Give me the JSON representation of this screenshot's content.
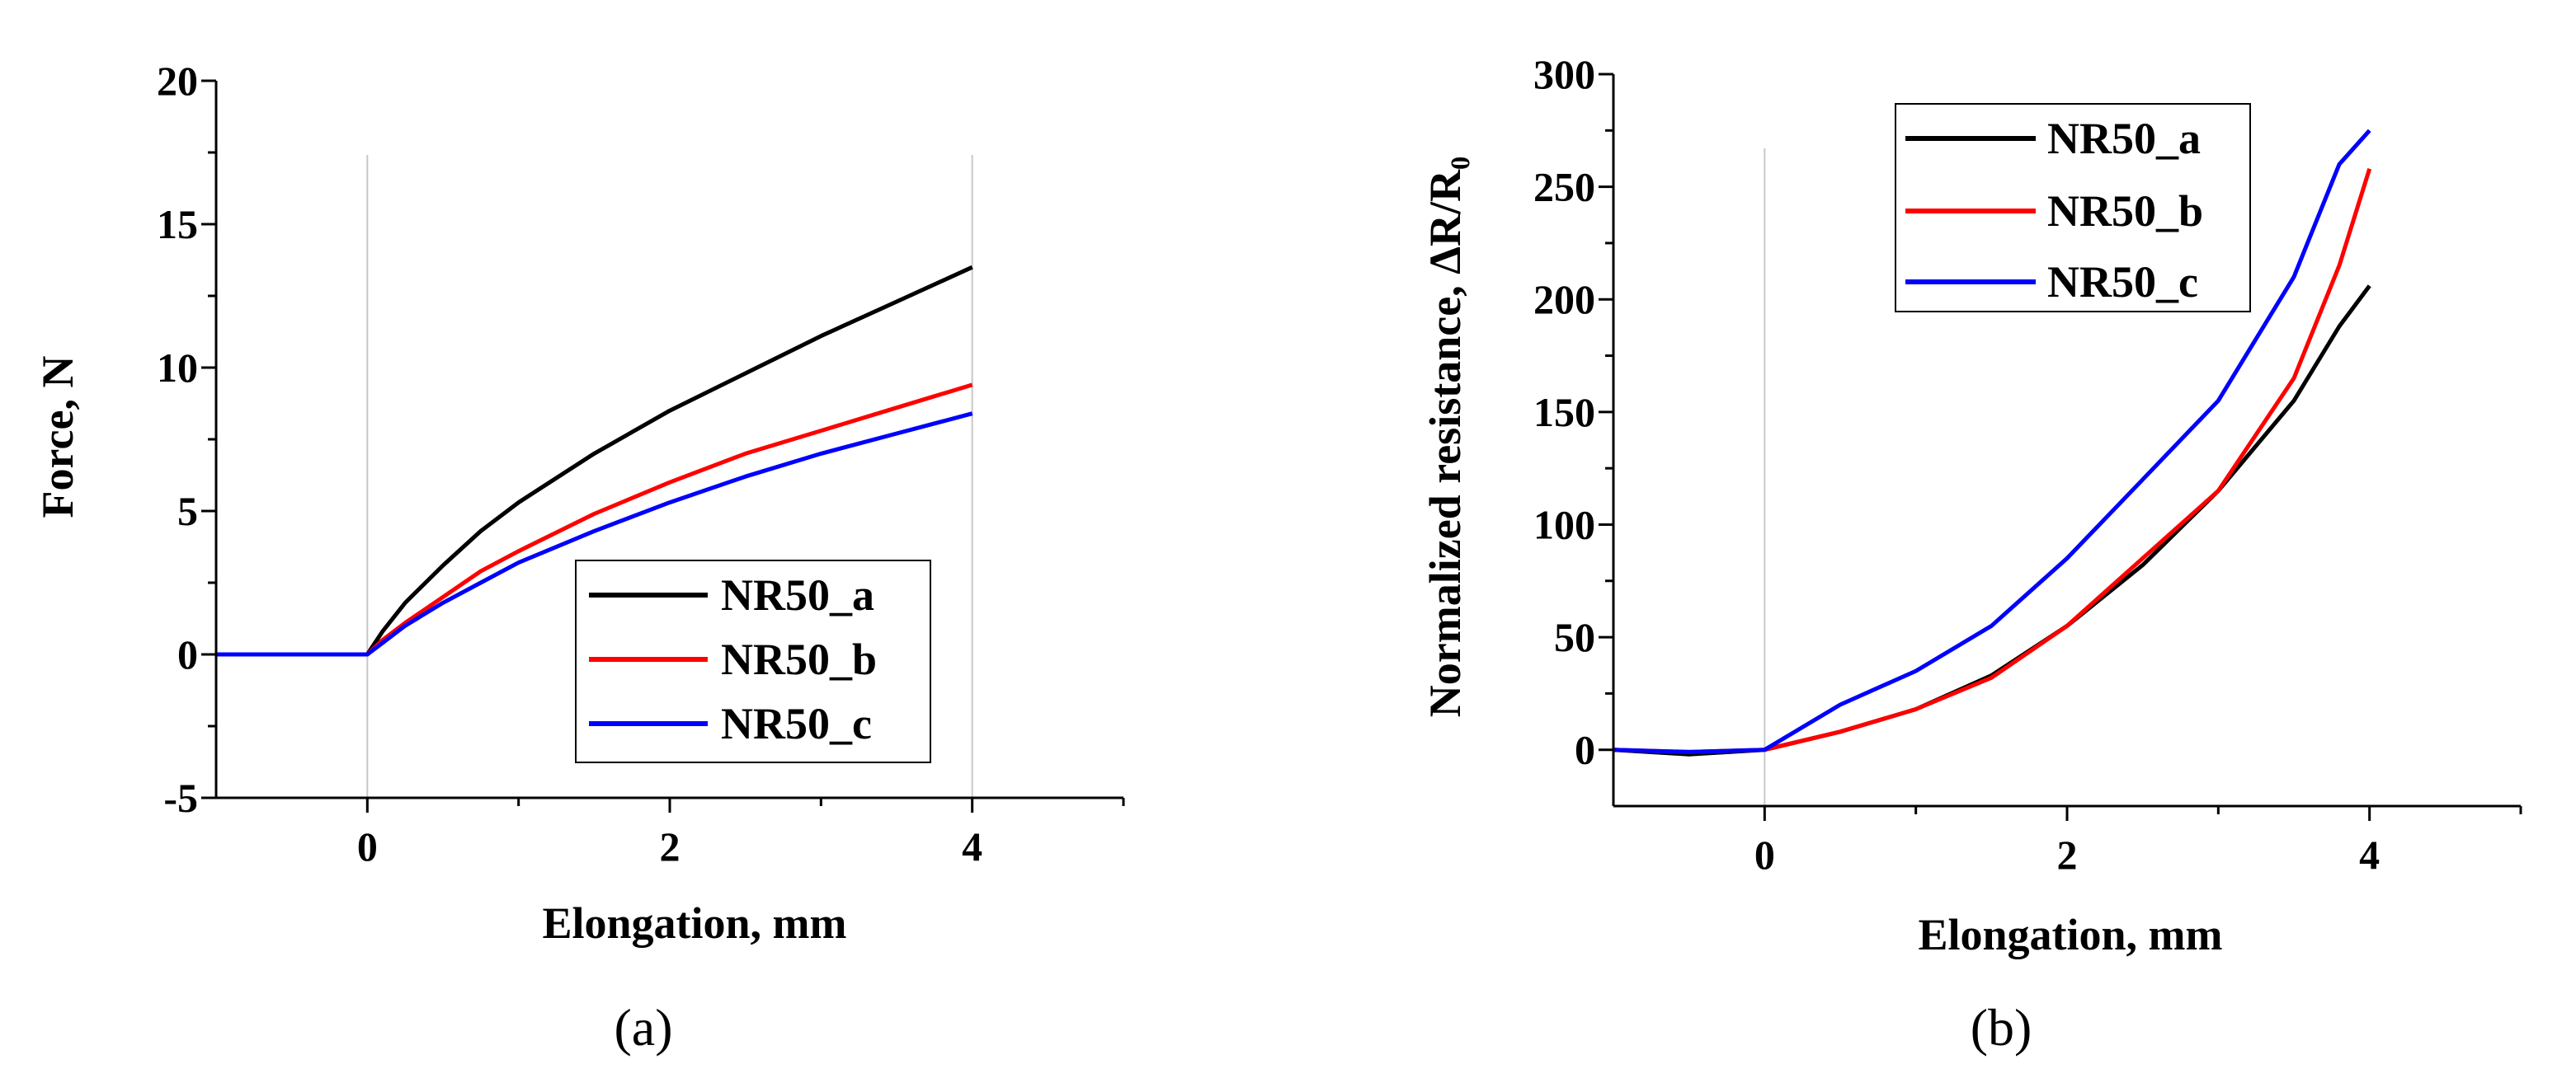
{
  "colors": {
    "NR50_a": "#000000",
    "NR50_b": "#ff0000",
    "NR50_c": "#0000ff",
    "axis": "#000000",
    "gridline": "#c8c8c8"
  },
  "chart_data": [
    {
      "type": "line",
      "panel": "(a)",
      "title": "",
      "xlabel": "Elongation, mm",
      "ylabel": "Force, N",
      "xlim": [
        -1,
        5
      ],
      "ylim": [
        -5,
        20
      ],
      "xticks": [
        0,
        2,
        4
      ],
      "yticks": [
        -5,
        0,
        5,
        10,
        15,
        20
      ],
      "vlines": [
        0,
        4
      ],
      "legend_position": "bottom-right",
      "series": [
        {
          "name": "NR50_a",
          "color": "#000000",
          "x": [
            -1,
            -0.5,
            0,
            0.1,
            0.25,
            0.5,
            0.75,
            1,
            1.5,
            2,
            2.5,
            3,
            3.5,
            4
          ],
          "y": [
            0,
            0,
            0,
            0.8,
            1.8,
            3.1,
            4.3,
            5.3,
            7.0,
            8.5,
            9.8,
            11.1,
            12.3,
            13.5
          ]
        },
        {
          "name": "NR50_b",
          "color": "#ff0000",
          "x": [
            -1,
            -0.5,
            0,
            0.1,
            0.25,
            0.5,
            0.75,
            1,
            1.5,
            2,
            2.5,
            3,
            3.5,
            4
          ],
          "y": [
            0,
            0,
            0,
            0.5,
            1.1,
            2.0,
            2.9,
            3.6,
            4.9,
            6.0,
            7.0,
            7.8,
            8.6,
            9.4
          ]
        },
        {
          "name": "NR50_c",
          "color": "#0000ff",
          "x": [
            -1,
            -0.5,
            0,
            0.1,
            0.25,
            0.5,
            0.75,
            1,
            1.5,
            2,
            2.5,
            3,
            3.5,
            4
          ],
          "y": [
            0,
            0,
            0,
            0.4,
            1.0,
            1.8,
            2.5,
            3.2,
            4.3,
            5.3,
            6.2,
            7.0,
            7.7,
            8.4
          ]
        }
      ]
    },
    {
      "type": "line",
      "panel": "(b)",
      "title": "",
      "xlabel": "Elongation, mm",
      "ylabel": "Normalized resistance, ΔR/R₀",
      "xlim": [
        -1,
        5
      ],
      "ylim": [
        -25,
        300
      ],
      "xticks": [
        0,
        2,
        4
      ],
      "yticks": [
        0,
        50,
        100,
        150,
        200,
        250,
        300
      ],
      "vlines": [
        0
      ],
      "legend_position": "top-left",
      "series": [
        {
          "name": "NR50_a",
          "color": "#000000",
          "x": [
            -1,
            -0.5,
            0,
            0.5,
            1,
            1.5,
            2,
            2.5,
            3,
            3.5,
            3.8,
            4
          ],
          "y": [
            0,
            -2,
            0,
            8,
            18,
            33,
            55,
            82,
            115,
            155,
            188,
            206
          ]
        },
        {
          "name": "NR50_b",
          "color": "#ff0000",
          "x": [
            -1,
            -0.5,
            0,
            0.5,
            1,
            1.5,
            2,
            2.5,
            3,
            3.5,
            3.8,
            4
          ],
          "y": [
            0,
            -1,
            0,
            8,
            18,
            32,
            55,
            85,
            115,
            165,
            215,
            258
          ]
        },
        {
          "name": "NR50_c",
          "color": "#0000ff",
          "x": [
            -1,
            -0.5,
            0,
            0.5,
            1,
            1.5,
            2,
            2.5,
            3,
            3.5,
            3.8,
            4
          ],
          "y": [
            0,
            -1,
            0,
            20,
            35,
            55,
            85,
            120,
            155,
            210,
            260,
            275
          ]
        }
      ]
    }
  ]
}
